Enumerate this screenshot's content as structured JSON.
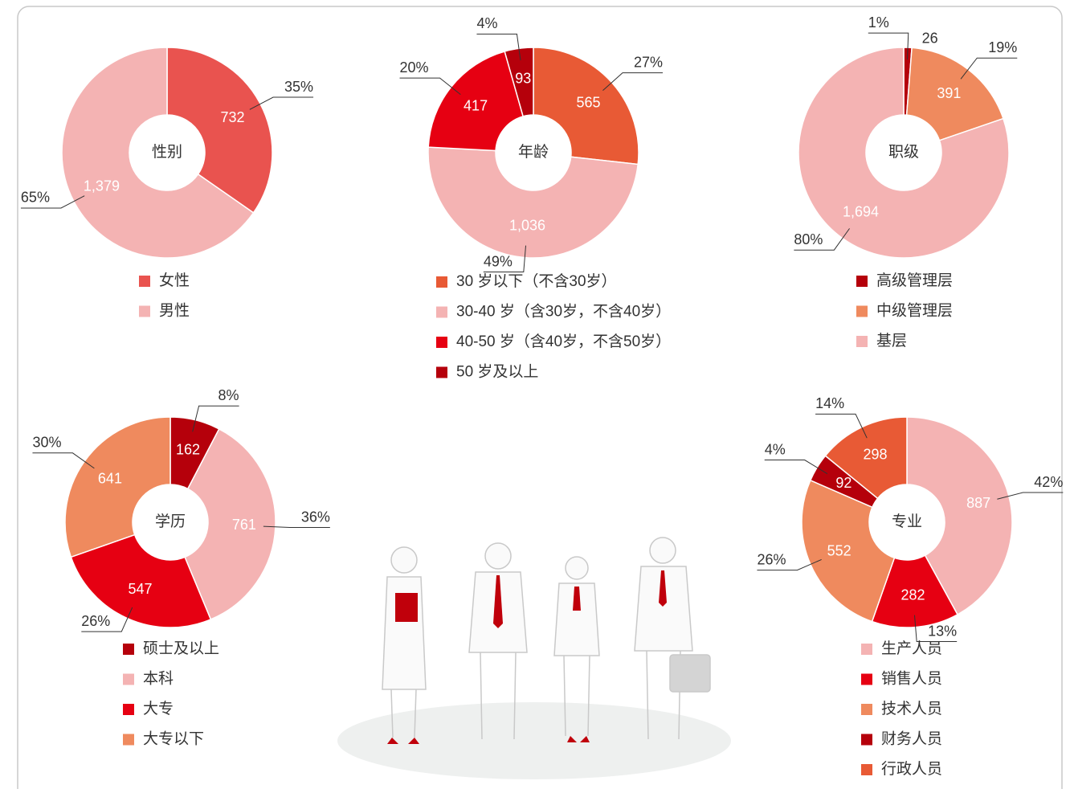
{
  "chart_data": [
    {
      "type": "donut",
      "title": "性别",
      "categories": [
        "女性",
        "男性"
      ],
      "values": [
        732,
        1379
      ],
      "value_labels": [
        "732",
        "1,379"
      ],
      "percents": [
        35,
        65
      ],
      "percent_labels": [
        "35%",
        "65%"
      ],
      "colors": [
        "#e9534f",
        "#f4b3b3"
      ]
    },
    {
      "type": "donut",
      "title": "年龄",
      "categories": [
        "30 岁以下（不含30岁）",
        "30-40 岁（含30岁，不含40岁）",
        "40-50 岁（含40岁，不含50岁）",
        "50 岁及以上"
      ],
      "values": [
        565,
        1036,
        417,
        93
      ],
      "value_labels": [
        "565",
        "1,036",
        "417",
        "93"
      ],
      "percents": [
        27,
        49,
        20,
        4
      ],
      "percent_labels": [
        "27%",
        "49%",
        "20%",
        "4%"
      ],
      "colors": [
        "#e85a35",
        "#f4b3b3",
        "#e60012",
        "#b5000b"
      ]
    },
    {
      "type": "donut",
      "title": "职级",
      "categories": [
        "高级管理层",
        "中级管理层",
        "基层"
      ],
      "values": [
        26,
        391,
        1694
      ],
      "value_labels": [
        "26",
        "391",
        "1,694"
      ],
      "percents": [
        1,
        19,
        80
      ],
      "percent_labels": [
        "1%",
        "19%",
        "80%"
      ],
      "colors": [
        "#b5000b",
        "#ef8a5e",
        "#f4b3b3"
      ]
    },
    {
      "type": "donut",
      "title": "学历",
      "categories": [
        "硕士及以上",
        "本科",
        "大专",
        "大专以下"
      ],
      "values": [
        162,
        761,
        547,
        641
      ],
      "value_labels": [
        "162",
        "761",
        "547",
        "641"
      ],
      "percents": [
        8,
        36,
        26,
        30
      ],
      "percent_labels": [
        "8%",
        "36%",
        "26%",
        "30%"
      ],
      "colors": [
        "#b5000b",
        "#f4b3b3",
        "#e60012",
        "#ef8a5e"
      ]
    },
    {
      "type": "donut",
      "title": "专业",
      "categories": [
        "生产人员",
        "销售人员",
        "技术人员",
        "财务人员",
        "行政人员"
      ],
      "values": [
        887,
        282,
        552,
        92,
        298
      ],
      "value_labels": [
        "887",
        "282",
        "552",
        "92",
        "298"
      ],
      "percents": [
        42,
        13,
        26,
        4,
        14
      ],
      "percent_labels": [
        "42%",
        "13%",
        "26%",
        "4%",
        "14%"
      ],
      "colors": [
        "#f4b3b3",
        "#e60012",
        "#ef8a5e",
        "#b5000b",
        "#e85a35"
      ]
    }
  ]
}
